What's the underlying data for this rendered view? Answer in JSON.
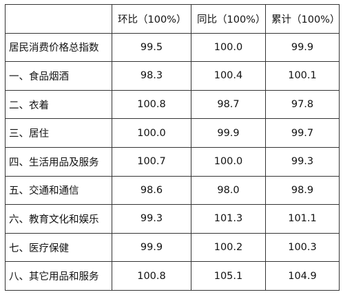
{
  "table": {
    "headers": [
      "",
      "环比（100%）",
      "同比（100%）",
      "累计（100%）"
    ],
    "rows": [
      {
        "label": "居民消费价格总指数",
        "values": [
          "99.5",
          "100.0",
          "99.9"
        ]
      },
      {
        "label": "一、食品烟酒",
        "values": [
          "98.3",
          "100.4",
          "100.1"
        ]
      },
      {
        "label": "二、衣着",
        "values": [
          "100.8",
          "98.7",
          "97.8"
        ]
      },
      {
        "label": "三、居住",
        "values": [
          "100.0",
          "99.9",
          "99.7"
        ]
      },
      {
        "label": "四、生活用品及服务",
        "values": [
          "100.7",
          "100.0",
          "99.3"
        ]
      },
      {
        "label": "五、交通和通信",
        "values": [
          "98.6",
          "98.0",
          "98.9"
        ]
      },
      {
        "label": "六、教育文化和娱乐",
        "values": [
          "99.3",
          "101.3",
          "101.1"
        ]
      },
      {
        "label": "七、医疗保健",
        "values": [
          "99.9",
          "100.2",
          "100.3"
        ]
      },
      {
        "label": "八、其它用品和服务",
        "values": [
          "100.8",
          "105.1",
          "104.9"
        ]
      }
    ]
  }
}
